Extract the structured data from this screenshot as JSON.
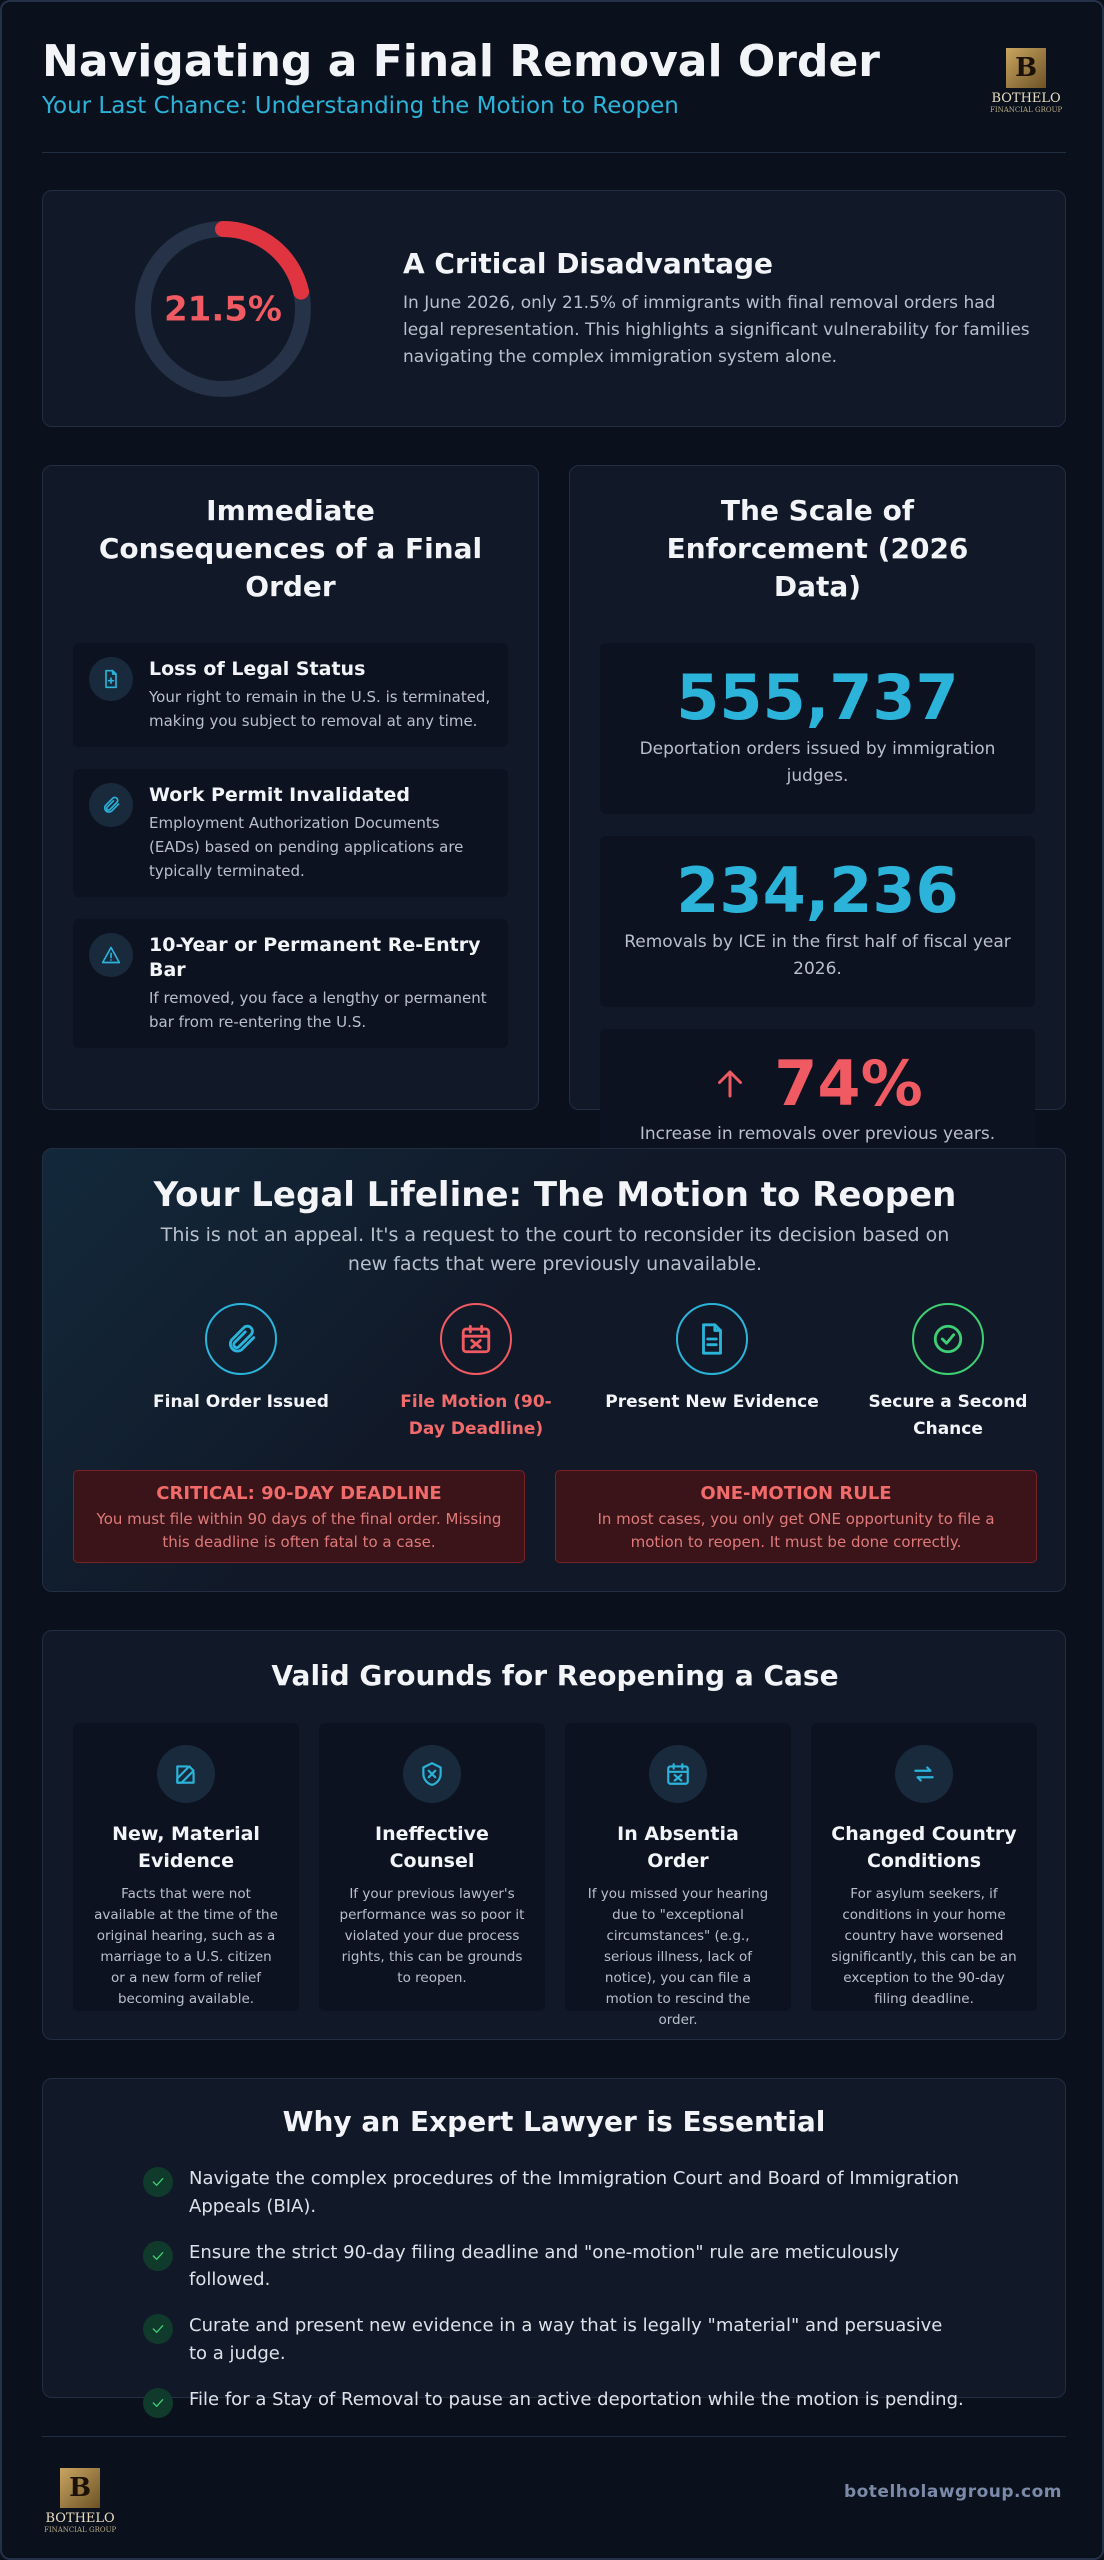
{
  "header": {
    "title": "Navigating a Final Removal Order",
    "subtitle": "Your Last Chance: Understanding the Motion to Reopen",
    "logo_name": "BOTHELO",
    "logo_sub": "FINANCIAL GROUP"
  },
  "highlight": {
    "stat": {
      "value": 21.5,
      "label": "21.5%"
    },
    "heading": "A Critical Disadvantage",
    "text": "In June 2026, only 21.5% of immigrants with final removal orders had legal representation. This highlights a significant vulnerability for families navigating the complex immigration system alone."
  },
  "consequences": {
    "title": "Immediate Consequences of a Final Order",
    "items": [
      {
        "title": "Loss of Legal Status",
        "text": "Your right to remain in the U.S. is terminated, making you subject to removal at any time."
      },
      {
        "title": "Work Permit Invalidated",
        "text": "Employment Authorization Documents (EADs) based on pending applications are typically terminated."
      },
      {
        "title": "10-Year or Permanent Re-Entry Bar",
        "text": "If removed, you face a lengthy or permanent bar from re-entering the U.S."
      }
    ]
  },
  "enforcement": {
    "title": "The Scale of Enforcement (2026 Data)",
    "stats": [
      {
        "number": "555,737",
        "text": "Deportation orders issued by immigration judges."
      },
      {
        "number": "234,236",
        "text": "Removals by ICE in the first half of fiscal year 2026."
      },
      {
        "number": "74%",
        "text": "Increase in removals over previous years."
      }
    ]
  },
  "lifeline": {
    "title": "Your Legal Lifeline: The Motion to Reopen",
    "subtitle": "This is not an appeal. It's a request to the court to reconsider its decision based on new facts that were previously unavailable.",
    "steps": [
      "Final Order Issued",
      "File Motion (90-Day Deadline)",
      "Present New Evidence",
      "Secure a Second Chance"
    ],
    "alerts": [
      {
        "title": "CRITICAL: 90-DAY DEADLINE",
        "text": "You must file within 90 days of the final order. Missing this deadline is often fatal to a case."
      },
      {
        "title": "ONE-MOTION RULE",
        "text": "In most cases, you only get ONE opportunity to file a motion to reopen. It must be done correctly."
      }
    ]
  },
  "grounds": {
    "title": "Valid Grounds for Reopening a Case",
    "items": [
      {
        "title": "New, Material Evidence",
        "text": "Facts that were not available at the time of the original hearing, such as a marriage to a U.S. citizen or a new form of relief becoming available."
      },
      {
        "title": "Ineffective Counsel",
        "text": "If your previous lawyer's performance was so poor it violated your due process rights, this can be grounds to reopen."
      },
      {
        "title": "In Absentia Order",
        "text": "If you missed your hearing due to \"exceptional circumstances\" (e.g., serious illness, lack of notice), you can file a motion to rescind the order."
      },
      {
        "title": "Changed Country Conditions",
        "text": "For asylum seekers, if conditions in your home country have worsened significantly, this can be an exception to the 90-day filing deadline."
      }
    ]
  },
  "lawyer": {
    "title": "Why an Expert Lawyer is Essential",
    "items": [
      "Navigate the complex procedures of the Immigration Court and Board of Immigration Appeals (BIA).",
      "Ensure the strict 90-day filing deadline and \"one-motion\" rule are meticulously followed.",
      "Curate and present new evidence in a way that is legally \"material\" and persuasive to a judge.",
      "File for a Stay of Removal to pause an active deportation while the motion is pending."
    ]
  },
  "footer": {
    "url": "botelholawgroup.com",
    "logo_name": "BOTHELO",
    "logo_sub": "FINANCIAL GROUP"
  }
}
